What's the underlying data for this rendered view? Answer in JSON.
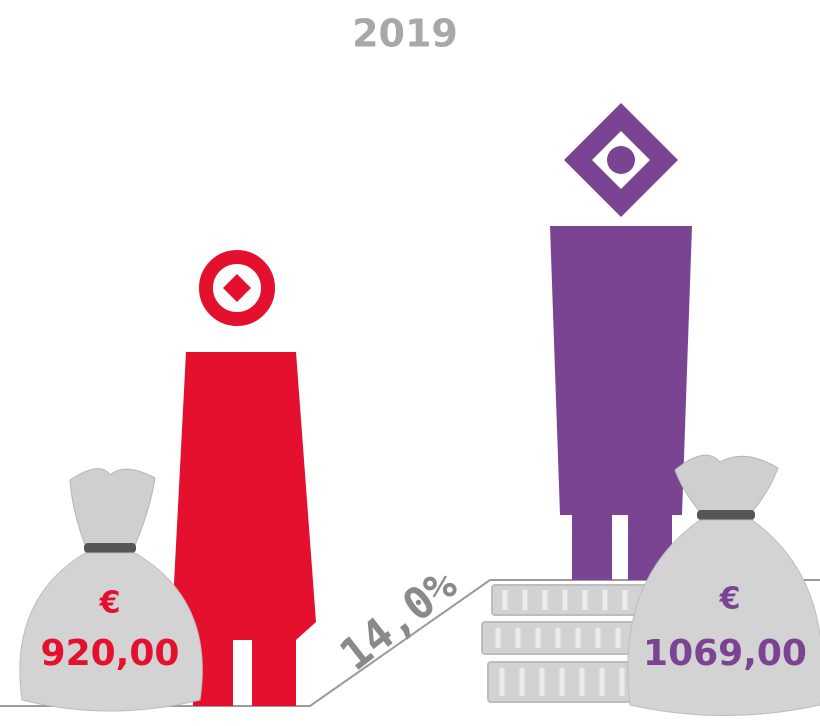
{
  "title": "2019",
  "left": {
    "currency": "€",
    "amount": "920,00"
  },
  "right": {
    "currency": "€",
    "amount": "1069,00"
  },
  "difference": "14,0%"
}
